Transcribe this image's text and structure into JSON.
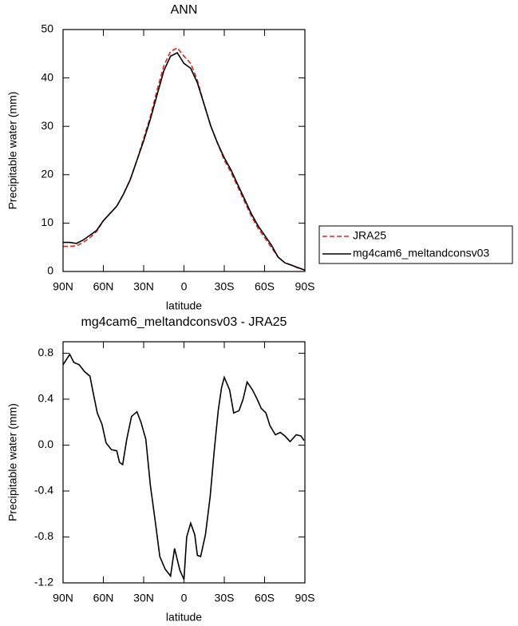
{
  "chart_data": [
    {
      "type": "line",
      "title": "ANN",
      "xlabel": "latitude",
      "ylabel": "Precipitable water (mm)",
      "x": [
        90,
        85,
        80,
        75,
        70,
        65,
        60,
        55,
        50,
        45,
        40,
        35,
        30,
        25,
        20,
        15,
        10,
        5,
        0,
        -5,
        -10,
        -15,
        -20,
        -25,
        -30,
        -35,
        -40,
        -45,
        -50,
        -55,
        -60,
        -65,
        -70,
        -75,
        -80,
        -85,
        -90
      ],
      "series": [
        {
          "name": "JRA25",
          "color": "#e8231e",
          "style": "dashed",
          "values": [
            5.2,
            5.2,
            5.3,
            6.0,
            7.0,
            8.3,
            10.5,
            12.0,
            13.5,
            16.0,
            19.0,
            23.0,
            27.5,
            32.0,
            37.5,
            42.5,
            45.5,
            46.2,
            44.5,
            43.0,
            39.5,
            34.5,
            30.0,
            26.5,
            23.0,
            20.5,
            17.5,
            14.5,
            11.5,
            9.0,
            7.0,
            5.0,
            3.0,
            1.8,
            1.3,
            0.7,
            0.3
          ]
        },
        {
          "name": "mg4cam6_meltandconsv03",
          "color": "#000000",
          "style": "solid",
          "values": [
            6.0,
            6.0,
            5.8,
            6.5,
            7.5,
            8.5,
            10.5,
            12.0,
            13.5,
            16.0,
            19.0,
            23.0,
            27.0,
            31.5,
            36.5,
            41.5,
            44.5,
            45.2,
            43.0,
            42.0,
            39.0,
            34.5,
            30.0,
            26.5,
            23.5,
            21.0,
            18.0,
            15.0,
            12.0,
            9.5,
            7.5,
            5.5,
            3.0,
            1.8,
            1.3,
            0.8,
            0.3
          ]
        }
      ],
      "xlim": [
        90,
        -90
      ],
      "xticks": [
        {
          "value": 90,
          "label": "90N"
        },
        {
          "value": 60,
          "label": "60N"
        },
        {
          "value": 30,
          "label": "30N"
        },
        0,
        {
          "value": -30,
          "label": "30S"
        },
        {
          "value": -60,
          "label": "60S"
        },
        {
          "value": -90,
          "label": "90S"
        }
      ],
      "ylim": [
        0,
        50
      ],
      "yticks": [
        0,
        10,
        20,
        30,
        40,
        50
      ],
      "legend": "right"
    },
    {
      "type": "line",
      "title": "mg4cam6_meltandconsv03 - JRA25",
      "xlabel": "latitude",
      "ylabel": "Precipitable water (mm)",
      "color": "#000000",
      "x": [
        90,
        85,
        82,
        78,
        74,
        70,
        67.5,
        64.5,
        61,
        58,
        54,
        50,
        48,
        45.6,
        42.6,
        39,
        35,
        32,
        28.4,
        25,
        21,
        18,
        14,
        10,
        7,
        3,
        0,
        -2,
        -5,
        -8,
        -10,
        -12.4,
        -16,
        -19.5,
        -22.5,
        -25.5,
        -28,
        -30,
        -34,
        -37,
        -41,
        -44,
        -47,
        -51,
        -54.5,
        -57.5,
        -61,
        -64,
        -68,
        -71.7,
        -75,
        -79,
        -83.5,
        -87,
        -89.4
      ],
      "values": [
        0.7,
        0.79,
        0.72,
        0.7,
        0.64,
        0.6,
        0.45,
        0.28,
        0.18,
        0.02,
        -0.04,
        -0.05,
        -0.15,
        -0.17,
        0.05,
        0.25,
        0.29,
        0.2,
        0.05,
        -0.35,
        -0.7,
        -0.97,
        -1.08,
        -1.14,
        -0.9,
        -1.09,
        -1.17,
        -0.8,
        -0.68,
        -0.78,
        -0.96,
        -0.97,
        -0.78,
        -0.45,
        -0.05,
        0.3,
        0.5,
        0.59,
        0.48,
        0.28,
        0.3,
        0.4,
        0.55,
        0.48,
        0.4,
        0.32,
        0.28,
        0.17,
        0.09,
        0.11,
        0.08,
        0.03,
        0.09,
        0.08,
        0.04
      ],
      "xlim": [
        90,
        -90
      ],
      "xticks": [
        {
          "value": 90,
          "label": "90N"
        },
        {
          "value": 60,
          "label": "60N"
        },
        {
          "value": 30,
          "label": "30N"
        },
        0,
        {
          "value": -30,
          "label": "30S"
        },
        {
          "value": -60,
          "label": "60S"
        },
        {
          "value": -90,
          "label": "90S"
        }
      ],
      "ylim": [
        -1.2,
        0.9
      ],
      "yticks": [
        -1.2,
        -0.8,
        -0.4,
        {
          "value": 0,
          "label": "0.0"
        },
        0.4,
        0.8
      ]
    }
  ]
}
